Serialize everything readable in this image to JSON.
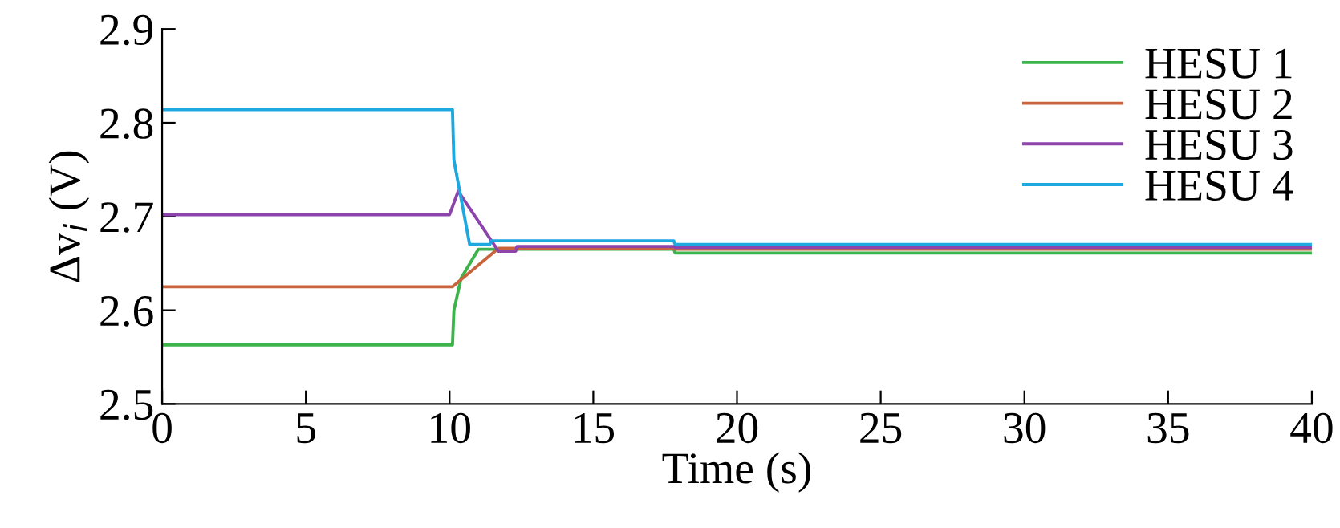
{
  "chart_data": {
    "type": "line",
    "xlabel": "Time (s)",
    "ylabel": "Δv$_{i}$ (V)",
    "xlim": [
      0,
      40
    ],
    "xticks": [
      0,
      5,
      10,
      15,
      20,
      25,
      30,
      35,
      40
    ],
    "ylim": [
      2.5,
      2.9
    ],
    "yticks": [
      2.5,
      2.6,
      2.7,
      2.8,
      2.9
    ],
    "grid": false,
    "legend": "top right",
    "line_style": "solid",
    "marker": "none",
    "series": [
      {
        "name": "HESU 1",
        "color": "#3cb44b",
        "x": [
          0,
          10.1,
          10.15,
          10.4,
          11.0,
          17.8,
          17.85,
          40
        ],
        "values": [
          2.563,
          2.563,
          2.6,
          2.634,
          2.665,
          2.665,
          2.661,
          2.661
        ]
      },
      {
        "name": "HESU 2",
        "color": "#c8643c",
        "x": [
          0,
          10.1,
          11.7,
          17.8,
          17.85,
          40
        ],
        "values": [
          2.625,
          2.625,
          2.666,
          2.666,
          2.665,
          2.665
        ]
      },
      {
        "name": "HESU 3",
        "color": "#8e44ad",
        "x": [
          0,
          10.0,
          10.3,
          11.7,
          12.3,
          12.35,
          17.8,
          17.85,
          40
        ],
        "values": [
          2.702,
          2.702,
          2.727,
          2.663,
          2.663,
          2.668,
          2.668,
          2.667,
          2.667
        ]
      },
      {
        "name": "HESU 4",
        "color": "#1ea8e0",
        "x": [
          0,
          10.1,
          10.15,
          10.7,
          11.4,
          11.45,
          17.8,
          17.85,
          40
        ],
        "values": [
          2.814,
          2.814,
          2.76,
          2.67,
          2.67,
          2.674,
          2.674,
          2.67,
          2.67
        ]
      }
    ]
  }
}
